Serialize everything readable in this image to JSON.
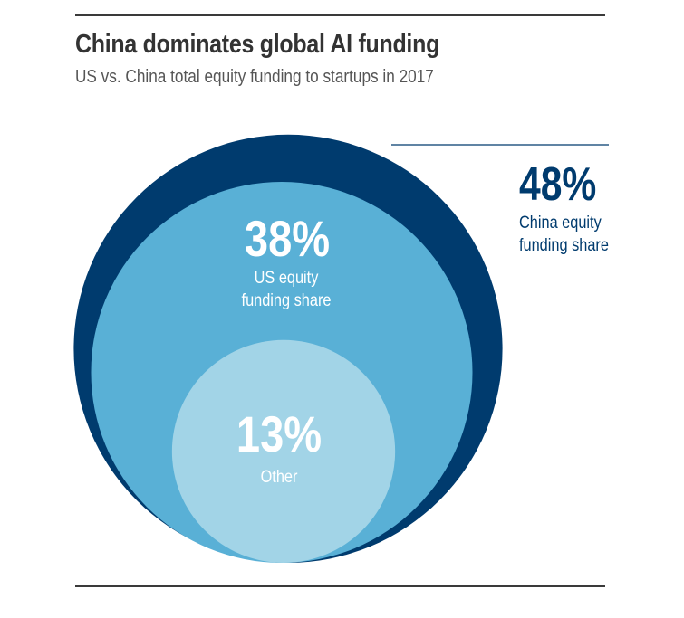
{
  "title": "China dominates global AI funding",
  "subtitle": "US vs. China total equity funding to startups in 2017",
  "chart_data": {
    "type": "nested-circle",
    "title": "China dominates global AI funding",
    "subtitle": "US vs. China total equity funding to startups in 2017",
    "unit": "%",
    "series": [
      {
        "name": "China equity funding share",
        "value": 48,
        "value_label": "48%",
        "color": "#003b6e",
        "label_position": "outside-right"
      },
      {
        "name": "US equity funding share",
        "value": 38,
        "value_label": "38%",
        "color": "#59b0d6",
        "label_position": "inside"
      },
      {
        "name": "Other",
        "value": 13,
        "value_label": "13%",
        "color": "#a2d4e7",
        "label_position": "inside"
      }
    ]
  },
  "colors": {
    "china": "#003b6e",
    "us": "#59b0d6",
    "other": "#a2d4e7",
    "callout_line": "#003b6e",
    "inside_text": "#ffffff",
    "outside_text": "#003b6e"
  }
}
